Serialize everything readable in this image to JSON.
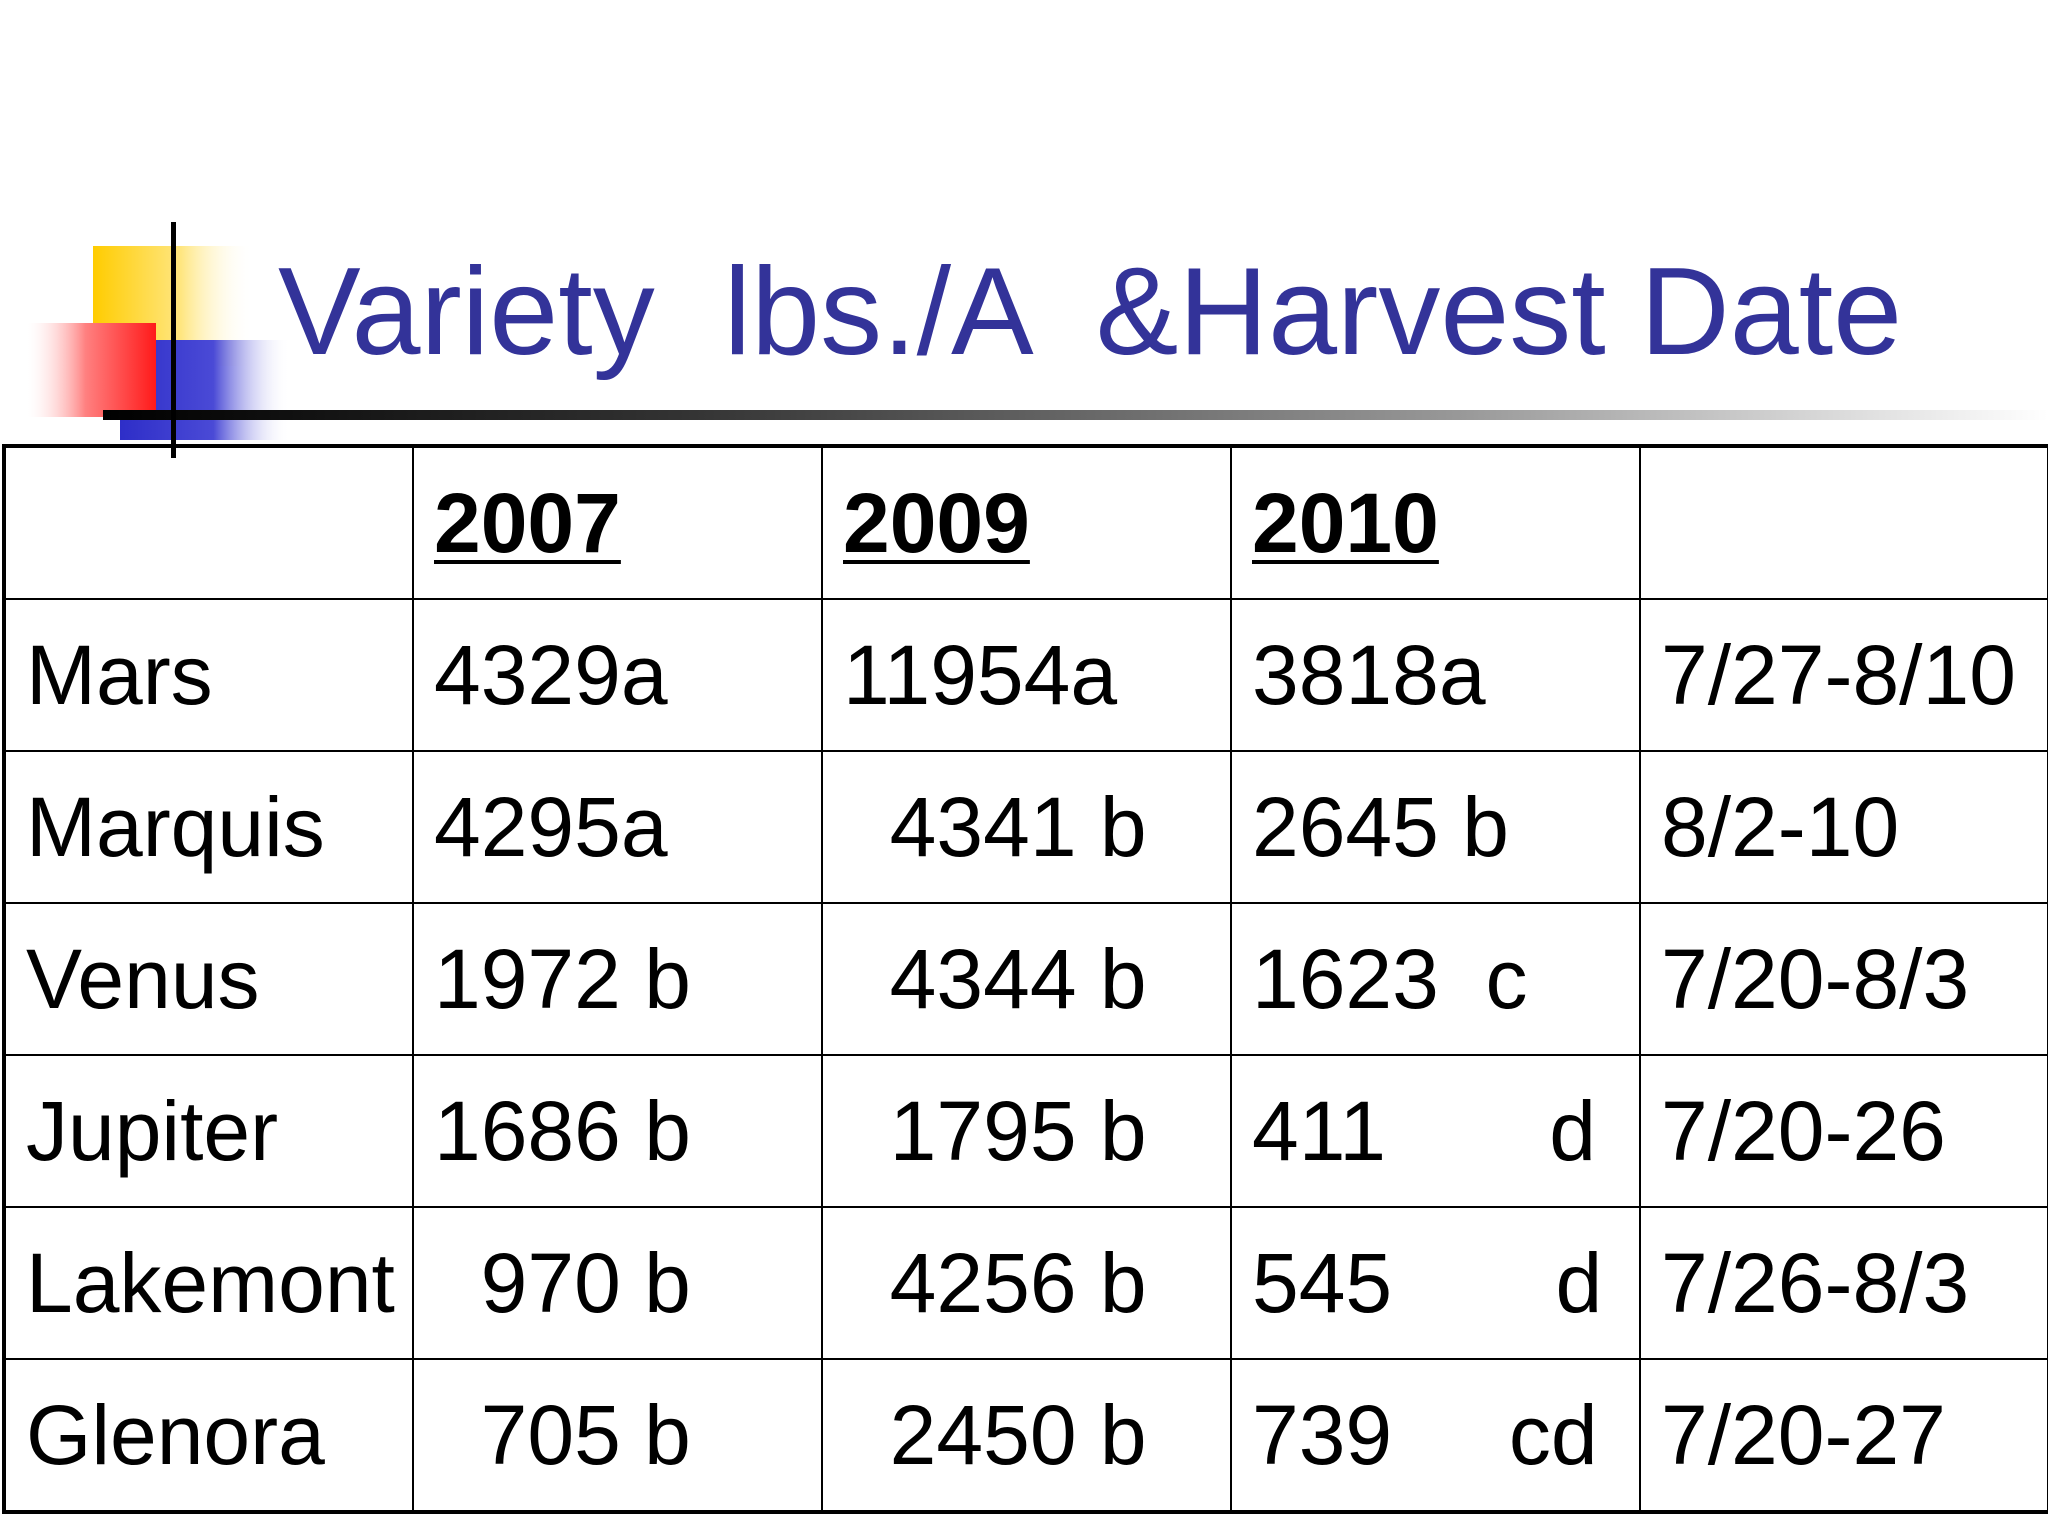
{
  "title": "Variety  lbs./A  &Harvest Date",
  "table": {
    "headers": [
      "",
      "2007",
      "2009",
      "2010",
      ""
    ],
    "rows": [
      [
        "Mars",
        "4329a",
        "11954a",
        "3818a",
        "7/27-8/10"
      ],
      [
        "Marquis",
        "4295a",
        "  4341 b",
        "2645 b",
        "8/2-10"
      ],
      [
        "Venus",
        "1972 b",
        "  4344 b",
        "1623  c",
        "7/20-8/3"
      ],
      [
        "Jupiter",
        "1686 b",
        "  1795 b",
        "411       d",
        "7/20-26"
      ],
      [
        "Lakemont",
        "  970 b",
        "  4256 b",
        "545       d",
        "7/26-8/3"
      ],
      [
        "Glenora",
        "  705 b",
        "  2450 b",
        "739     cd",
        "7/20-27"
      ]
    ]
  },
  "colors": {
    "title": "#333399",
    "accent_yellow": "#FFCC00",
    "accent_red": "#FF2A2A",
    "accent_blue": "#3333CC"
  }
}
